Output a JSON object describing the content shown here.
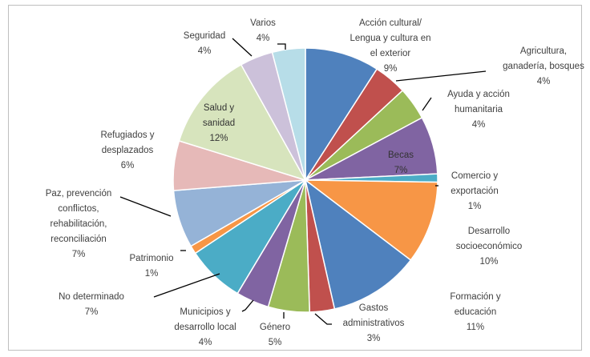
{
  "chart_data": {
    "type": "pie",
    "title": "",
    "slices": [
      {
        "label": "Acción cultural/ Lengua y cultura en el exterior",
        "value": 9,
        "display": "9%",
        "color": "#4f81bd"
      },
      {
        "label": "Agricultura, ganadería, bosques",
        "value": 4,
        "display": "4%",
        "color": "#c0504d"
      },
      {
        "label": "Ayuda y acción humanitaria",
        "value": 4,
        "display": "4%",
        "color": "#9bbb59"
      },
      {
        "label": "Becas",
        "value": 7,
        "display": "7%",
        "color": "#8064a2"
      },
      {
        "label": "Comercio y exportación",
        "value": 1,
        "display": "1%",
        "color": "#4bacc6"
      },
      {
        "label": "Desarrollo socioeconómico",
        "value": 10,
        "display": "10%",
        "color": "#f79646"
      },
      {
        "label": "Formación y educación",
        "value": 11,
        "display": "11%",
        "color": "#4f81bd"
      },
      {
        "label": "Gastos administrativos",
        "value": 3,
        "display": "3%",
        "color": "#c0504d"
      },
      {
        "label": "Género",
        "value": 5,
        "display": "5%",
        "color": "#9bbb59"
      },
      {
        "label": "Municipios y desarrollo local",
        "value": 4,
        "display": "4%",
        "color": "#8064a2"
      },
      {
        "label": "No determinado",
        "value": 7,
        "display": "7%",
        "color": "#4bacc6"
      },
      {
        "label": "Patrimonio",
        "value": 1,
        "display": "1%",
        "color": "#f79646"
      },
      {
        "label": "Paz, prevención conflictos, rehabilitación, reconciliación",
        "value": 7,
        "display": "7%",
        "color": "#95b3d7"
      },
      {
        "label": "Refugiados y desplazados",
        "value": 6,
        "display": "6%",
        "color": "#e6b9b8"
      },
      {
        "label": "Salud y sanidad",
        "value": 12,
        "display": "12%",
        "color": "#d7e4bd"
      },
      {
        "label": "Seguridad",
        "value": 4,
        "display": "4%",
        "color": "#ccc1da"
      },
      {
        "label": "Varios",
        "value": 4,
        "display": "4%",
        "color": "#b7dde8"
      }
    ],
    "legend": "none"
  }
}
